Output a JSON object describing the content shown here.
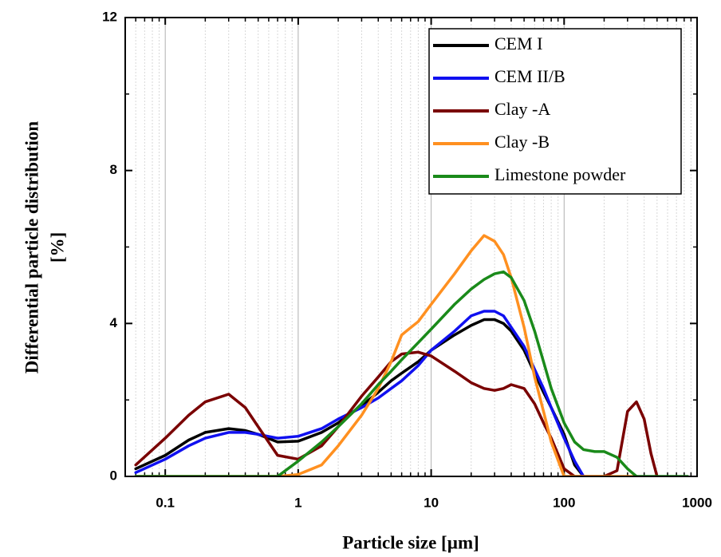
{
  "chart_data": {
    "type": "line",
    "xlabel": "Particle size [µm]",
    "ylabel": [
      "Differential particle distribution",
      "[%]"
    ],
    "xscale": "log",
    "xlim": [
      0.05,
      1000
    ],
    "xticks": [
      0.1,
      1,
      10,
      100,
      1000
    ],
    "ylim": [
      0,
      12
    ],
    "yticks": [
      0,
      4,
      8,
      12
    ],
    "grid": true,
    "legend": "upper right",
    "x": [
      0.06,
      0.1,
      0.15,
      0.2,
      0.3,
      0.4,
      0.5,
      0.7,
      1,
      1.5,
      2,
      3,
      4,
      5,
      6,
      8,
      10,
      15,
      20,
      25,
      30,
      35,
      40,
      50,
      60,
      70,
      80,
      100,
      120,
      140,
      170,
      200,
      250,
      300,
      350,
      400,
      450,
      500,
      600,
      700,
      850
    ],
    "series": [
      {
        "name": "CEM I",
        "color": "#000000",
        "values": [
          0.2,
          0.55,
          0.95,
          1.15,
          1.25,
          1.2,
          1.1,
          0.9,
          0.92,
          1.15,
          1.4,
          1.85,
          2.2,
          2.5,
          2.7,
          3.0,
          3.3,
          3.7,
          3.95,
          4.1,
          4.1,
          4.0,
          3.8,
          3.3,
          2.7,
          2.2,
          1.8,
          1.1,
          0.3,
          0.0,
          null,
          null,
          null,
          null,
          null,
          null,
          null,
          null,
          null,
          null,
          null
        ]
      },
      {
        "name": "CEM II/B",
        "color": "#1010f0",
        "values": [
          0.1,
          0.45,
          0.8,
          1.0,
          1.15,
          1.15,
          1.1,
          1.0,
          1.05,
          1.25,
          1.5,
          1.8,
          2.05,
          2.3,
          2.5,
          2.9,
          3.3,
          3.8,
          4.2,
          4.32,
          4.32,
          4.2,
          3.9,
          3.4,
          2.8,
          2.3,
          1.8,
          1.0,
          0.4,
          0.0,
          null,
          null,
          null,
          null,
          null,
          null,
          null,
          null,
          null,
          null,
          null
        ]
      },
      {
        "name": "Clay -A",
        "color": "#7a0000",
        "values": [
          0.3,
          1.0,
          1.6,
          1.95,
          2.15,
          1.8,
          1.3,
          0.55,
          0.45,
          0.8,
          1.3,
          2.1,
          2.6,
          3.0,
          3.2,
          3.25,
          3.15,
          2.75,
          2.45,
          2.3,
          2.25,
          2.3,
          2.4,
          2.3,
          1.9,
          1.4,
          1.0,
          0.2,
          0.0,
          0.0,
          0.0,
          0.0,
          0.15,
          1.7,
          1.95,
          1.5,
          0.6,
          0.0,
          null,
          null,
          null
        ]
      },
      {
        "name": "Clay -B",
        "color": "#ff9020",
        "values": [
          0.0,
          0.0,
          0.0,
          0.0,
          0.0,
          0.0,
          0.0,
          0.0,
          0.05,
          0.3,
          0.8,
          1.6,
          2.3,
          3.0,
          3.7,
          4.05,
          4.5,
          5.3,
          5.9,
          6.3,
          6.15,
          5.8,
          5.2,
          3.9,
          2.6,
          1.7,
          0.9,
          0.0,
          0.0,
          0.0,
          0.0,
          0.0,
          0.0,
          0.0,
          0.0,
          null,
          null,
          null,
          null,
          null,
          null
        ]
      },
      {
        "name": "Limestone powder",
        "color": "#1a8a1a",
        "values": [
          0.0,
          0.0,
          0.0,
          0.0,
          0.0,
          0.0,
          0.0,
          0.0,
          0.4,
          0.9,
          1.3,
          1.9,
          2.4,
          2.75,
          3.05,
          3.5,
          3.85,
          4.5,
          4.9,
          5.15,
          5.3,
          5.35,
          5.2,
          4.6,
          3.8,
          3.0,
          2.3,
          1.4,
          0.9,
          0.7,
          0.65,
          0.65,
          0.5,
          0.2,
          0.0,
          0.0,
          0.0,
          0.0,
          0.0,
          0.0,
          0.0
        ]
      }
    ]
  }
}
